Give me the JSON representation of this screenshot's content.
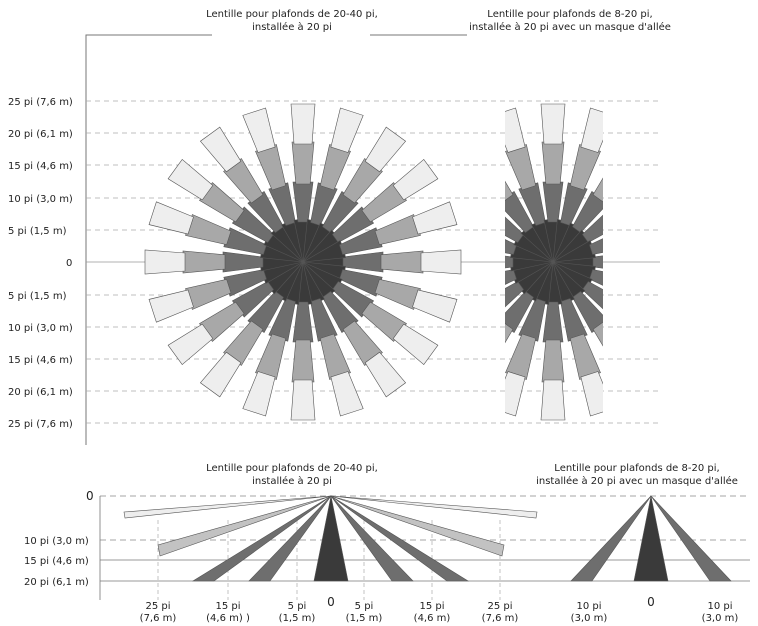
{
  "top_view": {
    "title_left": [
      "Lentille pour plafonds de 20-40 pi,",
      "installée à 20 pi"
    ],
    "title_right": [
      "Lentille pour plafonds de 8-20 pi,",
      "installée à 20 pi avec un masque d'allée"
    ],
    "y_labels": [
      "25 pi (7,6 m)",
      "20 pi (6,1 m)",
      "15 pi (4,6 m)",
      "10 pi (3,0 m)",
      "5 pi (1,5 m)",
      "0",
      "5 pi (1,5 m)",
      "10 pi (3,0 m)",
      "15 pi (4,6 m)",
      "20 pi (6,1 m)",
      "25 pi (7,6 m)"
    ]
  },
  "side_view": {
    "title_left": [
      "Lentille pour plafonds de 20-40 pi,",
      "installée à 20 pi"
    ],
    "title_right": [
      "Lentille pour plafonds de 8-20 pi,",
      "installée à 20 pi avec un masque d'allée"
    ],
    "y_labels": [
      "0",
      "10 pi (3,0 m)",
      "15 pi (4,6 m)",
      "20 pi (6,1 m)"
    ],
    "x_labels": [
      [
        "25 pi",
        "(7,6 m)"
      ],
      [
        "15 pi",
        "(4,6 m) )"
      ],
      [
        "5 pi",
        "(1,5 m)"
      ],
      [
        "0",
        ""
      ],
      [
        "5 pi",
        "(1,5 m)"
      ],
      [
        "15 pi",
        "(4,6 m)"
      ],
      [
        "25 pi",
        "(7,6 m)"
      ],
      [
        "10 pi",
        "(3,0 m)"
      ],
      [
        "0",
        ""
      ],
      [
        "10 pi",
        "(3,0 m)"
      ]
    ]
  },
  "colors": {
    "ring1": "#3a3a3a",
    "ring2": "#6e6e6e",
    "ring3": "#a8a8a8",
    "ring4": "#c2c2c2",
    "ring5": "#eeeeee",
    "outline": "#555555",
    "dashed": "#aaaaaa"
  }
}
